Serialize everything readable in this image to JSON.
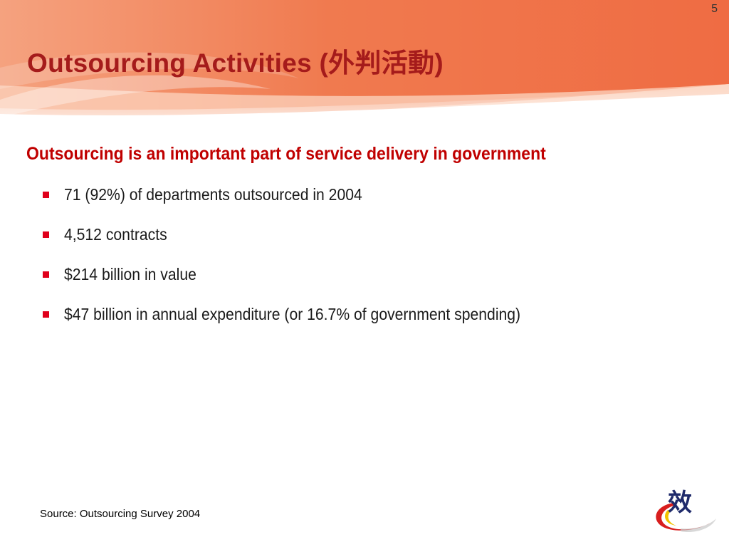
{
  "slide": {
    "page_number": "5",
    "title": "Outsourcing Activities (外判活動)",
    "subtitle": "Outsourcing is an important part of service delivery in government",
    "bullets": [
      "71 (92%) of departments outsourced in 2004",
      "4,512 contracts",
      "$214 billion in value",
      "$47 billion in annual expenditure (or 16.7% of government spending)"
    ],
    "source": "Source: Outsourcing Survey 2004",
    "logo_char": "效"
  },
  "colors": {
    "title": "#a51b1b",
    "subtitle": "#c00000",
    "bullet_marker": "#e0001b",
    "header_orange": "#f07a4f",
    "header_light": "#fbd6c2"
  }
}
